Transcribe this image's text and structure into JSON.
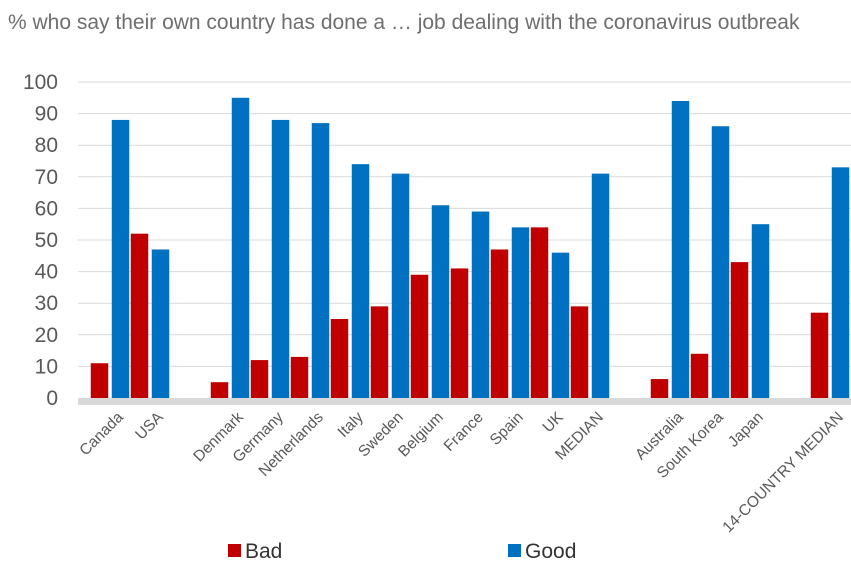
{
  "title": "% who say their own country has done a … job dealing with the coronavirus outbreak",
  "colors": {
    "bad": "#c00000",
    "good": "#0070c0",
    "grid": "#d9d9d9",
    "baseline": "#d9d9d9"
  },
  "chart_data": {
    "type": "bar",
    "title": "% who say their own country has done a … job dealing with the coronavirus outbreak",
    "xlabel": "",
    "ylabel": "",
    "ylim": [
      0,
      100
    ],
    "yticks": [
      0,
      10,
      20,
      30,
      40,
      50,
      60,
      70,
      80,
      90,
      100
    ],
    "grid": true,
    "legend_position": "bottom",
    "categories": [
      "Canada",
      "USA",
      "",
      "Denmark",
      "Germany",
      "Netherlands",
      "Italy",
      "Sweden",
      "Belgium",
      "France",
      "Spain",
      "UK",
      "MEDIAN",
      "",
      "Australia",
      "South Korea",
      "Japan",
      "",
      "14-COUNTRY MEDIAN"
    ],
    "series": [
      {
        "name": "Bad",
        "color": "#c00000",
        "values": [
          11,
          52,
          null,
          5,
          12,
          13,
          25,
          29,
          39,
          41,
          47,
          54,
          29,
          null,
          6,
          14,
          43,
          null,
          27
        ]
      },
      {
        "name": "Good",
        "color": "#0070c0",
        "values": [
          88,
          47,
          null,
          95,
          88,
          87,
          74,
          71,
          61,
          59,
          54,
          46,
          71,
          null,
          94,
          86,
          55,
          null,
          73
        ]
      }
    ]
  }
}
